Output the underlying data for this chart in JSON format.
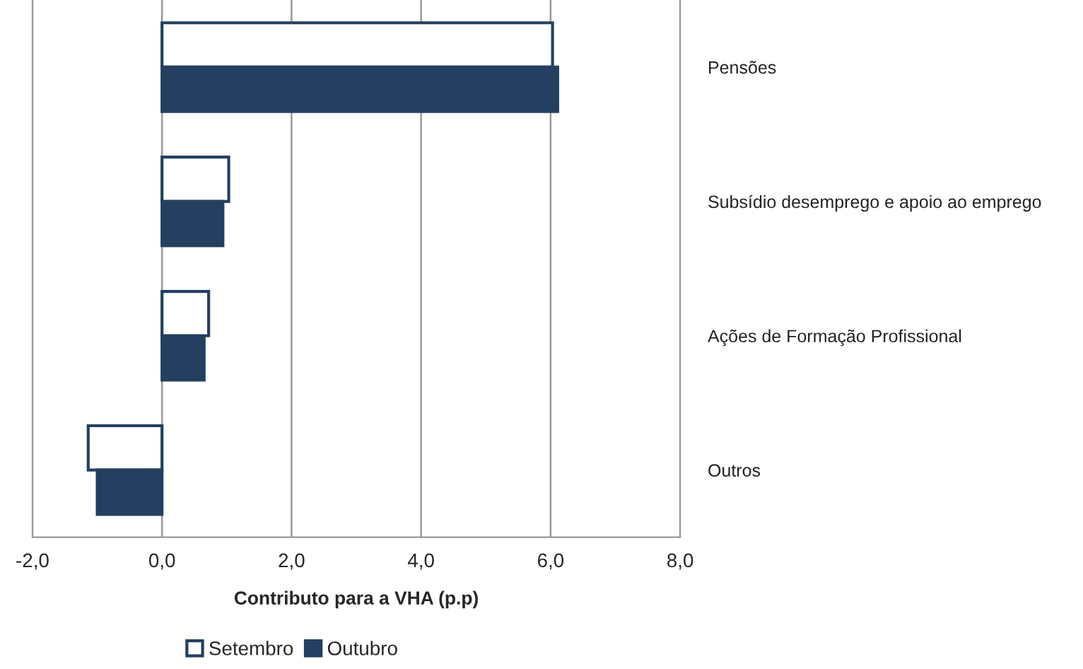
{
  "chart_data": {
    "type": "bar",
    "orientation": "horizontal",
    "xlabel": "Contributo para a VHA (p.p)",
    "categories": [
      "Pensões",
      "Subsídio desemprego e apoio ao emprego",
      "Ações de Formação Profissional",
      "Outros"
    ],
    "series": [
      {
        "name": "Setembro",
        "color": "#ffffff",
        "values": [
          6.03,
          1.03,
          0.72,
          -1.14
        ]
      },
      {
        "name": "Outubro",
        "color": "#243f60",
        "values": [
          6.11,
          0.94,
          0.65,
          -1.0
        ]
      }
    ],
    "xlim": [
      -2,
      8
    ],
    "xticks": [
      {
        "value": -2,
        "label": "-2,0"
      },
      {
        "value": 0,
        "label": "0,0"
      },
      {
        "value": 2,
        "label": "2,0"
      },
      {
        "value": 4,
        "label": "4,0"
      },
      {
        "value": 6,
        "label": "6,0"
      },
      {
        "value": 8,
        "label": "8,0"
      }
    ],
    "grid": "x",
    "legend": "bottom"
  }
}
